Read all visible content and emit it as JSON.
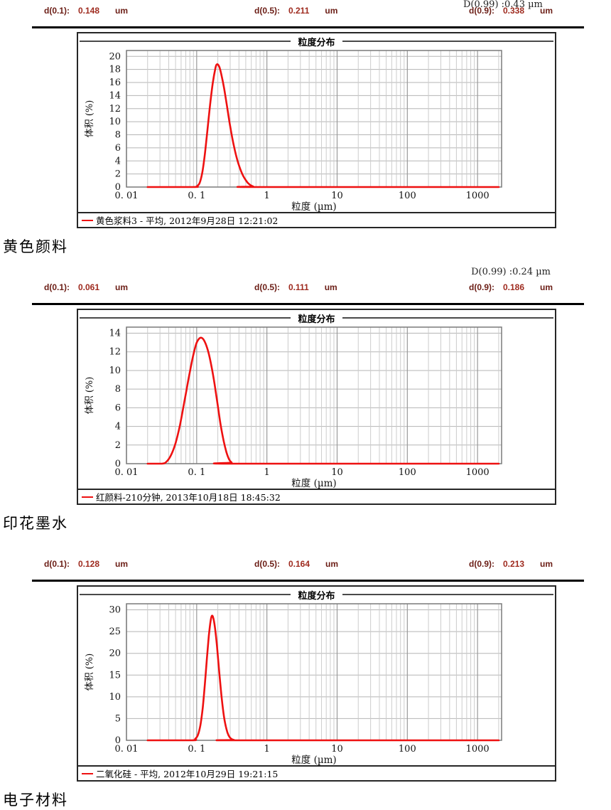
{
  "page": {
    "background": "#ffffff"
  },
  "colors": {
    "curve_red": "#ee1111",
    "d_label_maroon": "#6b1d15",
    "d_value_red": "#9e2a1e",
    "grid_minor": "#cccccc",
    "grid_major": "#999999",
    "grid_horizontal": "#b5b5b5",
    "plot_border": "#7a7a7a",
    "frame_border": "#262626"
  },
  "top_clipped_note": "D(0.99) :0.43 µm",
  "chart_data": [
    {
      "type": "line",
      "title": "粒度分布",
      "xlabel": "粒度 (µm)",
      "ylabel": "体积 (%)",
      "xscale": "log",
      "xlim": [
        0.01,
        2200
      ],
      "ylim": [
        0,
        20.9
      ],
      "yticks": [
        0,
        2,
        4,
        6,
        8,
        10,
        12,
        14,
        16,
        18,
        20
      ],
      "xtick_values": [
        0.01,
        0.1,
        1,
        10,
        100,
        1000
      ],
      "xtick_labels": [
        "0. 01",
        "0. 1",
        "1",
        "10",
        "100",
        "1000"
      ],
      "d_note": "",
      "d_values": [
        {
          "label": "d(0.1):",
          "value": "0.148",
          "unit": "um"
        },
        {
          "label": "d(0.5):",
          "value": "0.211",
          "unit": "um"
        },
        {
          "label": "d(0.9):",
          "value": "0.338",
          "unit": "um"
        }
      ],
      "legend": "黄色浆料3 - 平均, 2012年9月28日 12:21:02",
      "section_label": "黄色颜料",
      "series": [
        {
          "name": "黄色浆料3 - 平均, 2012年9月28日 12:21:02",
          "color": "#ee1111",
          "points": [
            [
              0.02,
              0
            ],
            [
              0.09,
              0
            ],
            [
              0.1,
              0.1
            ],
            [
              0.11,
              0.6
            ],
            [
              0.12,
              2.2
            ],
            [
              0.13,
              4.8
            ],
            [
              0.14,
              8.0
            ],
            [
              0.155,
              12.5
            ],
            [
              0.17,
              16.0
            ],
            [
              0.185,
              18.2
            ],
            [
              0.195,
              18.8
            ],
            [
              0.21,
              18.4
            ],
            [
              0.225,
              17.2
            ],
            [
              0.245,
              15.2
            ],
            [
              0.27,
              12.4
            ],
            [
              0.3,
              9.3
            ],
            [
              0.34,
              6.2
            ],
            [
              0.39,
              3.7
            ],
            [
              0.45,
              1.9
            ],
            [
              0.52,
              0.8
            ],
            [
              0.58,
              0.3
            ],
            [
              0.64,
              0.08
            ],
            [
              0.7,
              0
            ],
            [
              2000,
              0
            ]
          ]
        }
      ]
    },
    {
      "type": "line",
      "title": "粒度分布",
      "xlabel": "粒度 (µm)",
      "ylabel": "体积 (%)",
      "xscale": "log",
      "xlim": [
        0.01,
        2200
      ],
      "ylim": [
        0,
        14.65
      ],
      "yticks": [
        0,
        2,
        4,
        6,
        8,
        10,
        12,
        14
      ],
      "xtick_values": [
        0.01,
        0.1,
        1,
        10,
        100,
        1000
      ],
      "xtick_labels": [
        "0. 01",
        "0. 1",
        "1",
        "10",
        "100",
        "1000"
      ],
      "d_note": "D(0.99) :0.24 µm",
      "d_values": [
        {
          "label": "d(0.1):",
          "value": "0.061",
          "unit": "um"
        },
        {
          "label": "d(0.5):",
          "value": "0.111",
          "unit": "um"
        },
        {
          "label": "d(0.9):",
          "value": "0.186",
          "unit": "um"
        }
      ],
      "legend": "红颜料-210分钟, 2013年10月18日 18:45:32",
      "section_label": "印花墨水",
      "series": [
        {
          "name": "红颜料-210分钟, 2013年10月18日 18:45:32",
          "color": "#ee1111",
          "points": [
            [
              0.02,
              0
            ],
            [
              0.032,
              0
            ],
            [
              0.037,
              0.2
            ],
            [
              0.043,
              0.9
            ],
            [
              0.05,
              2.2
            ],
            [
              0.058,
              4.2
            ],
            [
              0.067,
              6.7
            ],
            [
              0.077,
              9.2
            ],
            [
              0.088,
              11.4
            ],
            [
              0.098,
              12.8
            ],
            [
              0.108,
              13.4
            ],
            [
              0.118,
              13.5
            ],
            [
              0.13,
              13.1
            ],
            [
              0.145,
              12.1
            ],
            [
              0.162,
              10.5
            ],
            [
              0.18,
              8.5
            ],
            [
              0.2,
              6.2
            ],
            [
              0.22,
              4.1
            ],
            [
              0.243,
              2.4
            ],
            [
              0.266,
              1.2
            ],
            [
              0.29,
              0.45
            ],
            [
              0.315,
              0.12
            ],
            [
              0.34,
              0
            ],
            [
              2000,
              0
            ]
          ]
        }
      ]
    },
    {
      "type": "line",
      "title": "粒度分布",
      "xlabel": "粒度 (µm)",
      "ylabel": "体积 (%)",
      "xscale": "log",
      "xlim": [
        0.01,
        2200
      ],
      "ylim": [
        0,
        31.4
      ],
      "yticks": [
        0,
        5,
        10,
        15,
        20,
        25,
        30
      ],
      "xtick_values": [
        0.01,
        0.1,
        1,
        10,
        100,
        1000
      ],
      "xtick_labels": [
        "0. 01",
        "0. 1",
        "1",
        "10",
        "100",
        "1000"
      ],
      "d_note": "",
      "d_values": [
        {
          "label": "d(0.1):",
          "value": "0.128",
          "unit": "um"
        },
        {
          "label": "d(0.5):",
          "value": "0.164",
          "unit": "um"
        },
        {
          "label": "d(0.9):",
          "value": "0.213",
          "unit": "um"
        }
      ],
      "legend": "二氧化硅 - 平均, 2012年10月29日 19:21:15",
      "section_label": "电子材料",
      "series": [
        {
          "name": "二氧化硅 - 平均, 2012年10月29日 19:21:15",
          "color": "#ee1111",
          "points": [
            [
              0.02,
              0
            ],
            [
              0.085,
              0
            ],
            [
              0.095,
              0.3
            ],
            [
              0.104,
              1.2
            ],
            [
              0.113,
              3.5
            ],
            [
              0.122,
              7.5
            ],
            [
              0.131,
              13.0
            ],
            [
              0.14,
              19.0
            ],
            [
              0.149,
              24.0
            ],
            [
              0.157,
              27.2
            ],
            [
              0.164,
              28.6
            ],
            [
              0.172,
              28.2
            ],
            [
              0.182,
              26.0
            ],
            [
              0.195,
              21.5
            ],
            [
              0.21,
              15.5
            ],
            [
              0.227,
              9.8
            ],
            [
              0.245,
              5.4
            ],
            [
              0.265,
              2.6
            ],
            [
              0.285,
              1.1
            ],
            [
              0.31,
              0.35
            ],
            [
              0.34,
              0.08
            ],
            [
              0.37,
              0
            ],
            [
              2000,
              0
            ]
          ]
        }
      ]
    }
  ]
}
